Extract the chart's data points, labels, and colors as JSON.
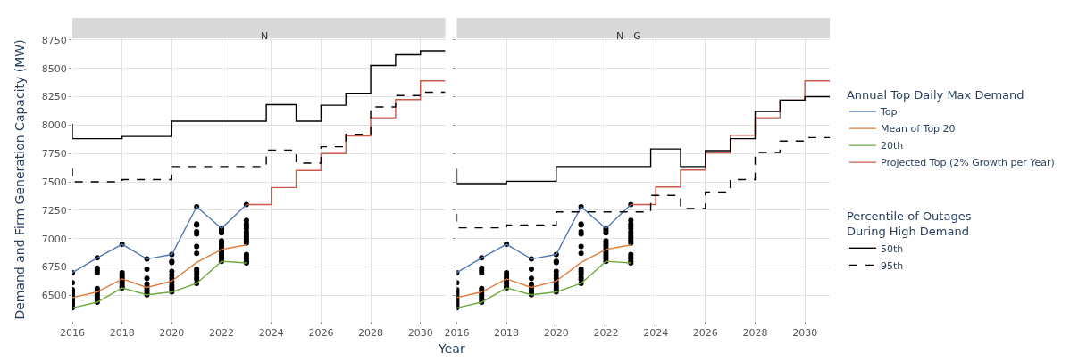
{
  "chart_data": [
    {
      "type": "line",
      "title": "N",
      "xlabel": "Year",
      "ylabel": "Demand and Firm Generation Capacity (MW)",
      "legend_title": "Annual Top Daily Max Demand",
      "legend": "right",
      "grid": true,
      "xlim": [
        2016,
        2031
      ],
      "xticks": [
        2016,
        2018,
        2020,
        2022,
        2024,
        2026,
        2028,
        2030
      ],
      "ylim": [
        6275,
        8765
      ],
      "yticks": [
        6500,
        6750,
        7000,
        7250,
        7500,
        7750,
        8000,
        8250,
        8500,
        8750
      ],
      "series": [
        {
          "type": "scatter",
          "marker": "circle",
          "color": "#000000",
          "x": [
            2016,
            2016,
            2016,
            2016,
            2016,
            2016,
            2016,
            2016,
            2016,
            2016,
            2016,
            2017,
            2017,
            2017,
            2017,
            2017,
            2017,
            2017,
            2017,
            2017,
            2017,
            2017,
            2018,
            2018,
            2018,
            2018,
            2018,
            2018,
            2018,
            2018,
            2018,
            2019,
            2019,
            2019,
            2019,
            2019,
            2019,
            2019,
            2019,
            2019,
            2020,
            2020,
            2020,
            2020,
            2020,
            2020,
            2020,
            2020,
            2020,
            2020,
            2020,
            2021,
            2021,
            2021,
            2021,
            2021,
            2021,
            2021,
            2021,
            2021,
            2021,
            2021,
            2021,
            2021,
            2022,
            2022,
            2022,
            2022,
            2022,
            2022,
            2022,
            2022,
            2022,
            2022,
            2022,
            2022,
            2022,
            2023,
            2023,
            2023,
            2023,
            2023,
            2023,
            2023,
            2023,
            2023,
            2023,
            2023,
            2023,
            2023,
            2023,
            2023,
            2023
          ],
          "values": [
            6700,
            6390,
            6410,
            6430,
            6450,
            6470,
            6490,
            6510,
            6530,
            6550,
            6610,
            6830,
            6440,
            6460,
            6480,
            6500,
            6520,
            6540,
            6560,
            6700,
            6720,
            6740,
            6950,
            6565,
            6580,
            6600,
            6620,
            6640,
            6660,
            6680,
            6700,
            6820,
            6505,
            6520,
            6540,
            6560,
            6580,
            6600,
            6650,
            6730,
            6860,
            6530,
            6550,
            6570,
            6590,
            6620,
            6650,
            6680,
            6710,
            6790,
            6800,
            7280,
            6605,
            6640,
            6660,
            6690,
            6710,
            6730,
            6870,
            6930,
            7040,
            7060,
            7120,
            7130,
            7090,
            6800,
            6820,
            6840,
            6860,
            6880,
            6900,
            6920,
            6940,
            6960,
            6980,
            7050,
            7070,
            7300,
            6785,
            6800,
            6820,
            6840,
            6860,
            6960,
            6980,
            7000,
            7020,
            7040,
            7060,
            7090,
            7110,
            7130,
            7160
          ]
        },
        {
          "name": "Top",
          "color": "#5179b5",
          "x": [
            2016,
            2017,
            2018,
            2019,
            2020,
            2021,
            2022,
            2023
          ],
          "values": [
            6700,
            6830,
            6950,
            6820,
            6860,
            7280,
            7090,
            7300
          ]
        },
        {
          "name": "Mean of Top 20",
          "color": "#e07b39",
          "x": [
            2016,
            2017,
            2018,
            2019,
            2020,
            2021,
            2022,
            2023
          ],
          "values": [
            6480,
            6530,
            6645,
            6570,
            6625,
            6790,
            6905,
            6945
          ]
        },
        {
          "name": "20th",
          "color": "#70a83c",
          "x": [
            2016,
            2017,
            2018,
            2019,
            2020,
            2021,
            2022,
            2023
          ],
          "values": [
            6390,
            6440,
            6565,
            6505,
            6530,
            6605,
            6800,
            6785
          ]
        },
        {
          "type": "step",
          "name": "Projected Top (2% Growth per Year)",
          "color": "#cc5a4b",
          "x": [
            2023,
            2024,
            2025,
            2026,
            2027,
            2028,
            2029,
            2030,
            2031
          ],
          "values": [
            7300,
            7450,
            7600,
            7750,
            7905,
            8065,
            8225,
            8390,
            8390
          ]
        },
        {
          "type": "step",
          "color": "#000000",
          "line_style": "solid",
          "x": [
            2016,
            2016,
            2018,
            2020,
            2023.8,
            2025,
            2026,
            2027,
            2028,
            2029,
            2030,
            2031
          ],
          "values": [
            8010,
            7880,
            7900,
            8035,
            8180,
            8035,
            8175,
            8280,
            8525,
            8620,
            8655,
            8655
          ]
        },
        {
          "type": "step",
          "color": "#000000",
          "line_style": "dashed",
          "x": [
            2016,
            2016,
            2018,
            2020,
            2023.8,
            2025,
            2026,
            2027,
            2028,
            2029,
            2030,
            2031
          ],
          "values": [
            7620,
            7500,
            7520,
            7635,
            7780,
            7665,
            7810,
            7920,
            8160,
            8260,
            8290,
            8290
          ]
        }
      ]
    },
    {
      "type": "line",
      "title": "N - G",
      "legend_title": "Percentile of Outages\nDuring High Demand",
      "legend": "right",
      "grid": true,
      "tick_labels": "x",
      "xlim": [
        2016,
        2031
      ],
      "xticks": [
        2016,
        2018,
        2020,
        2022,
        2024,
        2026,
        2028,
        2030
      ],
      "ylim": [
        6275,
        8765
      ],
      "yticks": [
        6500,
        6750,
        7000,
        7250,
        7500,
        7750,
        8000,
        8250,
        8500,
        8750
      ],
      "series": [
        {
          "type": "scatter",
          "marker": "circle",
          "color": "#000000",
          "x": [
            2016,
            2016,
            2016,
            2016,
            2016,
            2016,
            2016,
            2016,
            2016,
            2016,
            2016,
            2017,
            2017,
            2017,
            2017,
            2017,
            2017,
            2017,
            2017,
            2017,
            2017,
            2017,
            2018,
            2018,
            2018,
            2018,
            2018,
            2018,
            2018,
            2018,
            2018,
            2019,
            2019,
            2019,
            2019,
            2019,
            2019,
            2019,
            2019,
            2019,
            2020,
            2020,
            2020,
            2020,
            2020,
            2020,
            2020,
            2020,
            2020,
            2020,
            2020,
            2021,
            2021,
            2021,
            2021,
            2021,
            2021,
            2021,
            2021,
            2021,
            2021,
            2021,
            2021,
            2021,
            2022,
            2022,
            2022,
            2022,
            2022,
            2022,
            2022,
            2022,
            2022,
            2022,
            2022,
            2022,
            2022,
            2023,
            2023,
            2023,
            2023,
            2023,
            2023,
            2023,
            2023,
            2023,
            2023,
            2023,
            2023,
            2023,
            2023,
            2023,
            2023
          ],
          "values": [
            6700,
            6390,
            6410,
            6430,
            6450,
            6470,
            6490,
            6510,
            6530,
            6550,
            6610,
            6830,
            6440,
            6460,
            6480,
            6500,
            6520,
            6540,
            6560,
            6700,
            6720,
            6740,
            6950,
            6565,
            6580,
            6600,
            6620,
            6640,
            6660,
            6680,
            6700,
            6820,
            6505,
            6520,
            6540,
            6560,
            6580,
            6600,
            6650,
            6730,
            6860,
            6530,
            6550,
            6570,
            6590,
            6620,
            6650,
            6680,
            6710,
            6790,
            6800,
            7280,
            6605,
            6640,
            6660,
            6690,
            6710,
            6730,
            6870,
            6930,
            7040,
            7060,
            7120,
            7130,
            7090,
            6800,
            6820,
            6840,
            6860,
            6880,
            6900,
            6920,
            6940,
            6960,
            6980,
            7050,
            7070,
            7300,
            6785,
            6800,
            6820,
            6840,
            6860,
            6960,
            6980,
            7000,
            7020,
            7040,
            7060,
            7090,
            7110,
            7130,
            7160
          ]
        },
        {
          "color": "#5179b5",
          "x": [
            2016,
            2017,
            2018,
            2019,
            2020,
            2021,
            2022,
            2023
          ],
          "values": [
            6700,
            6830,
            6950,
            6820,
            6860,
            7280,
            7090,
            7300
          ]
        },
        {
          "color": "#e07b39",
          "x": [
            2016,
            2017,
            2018,
            2019,
            2020,
            2021,
            2022,
            2023
          ],
          "values": [
            6480,
            6530,
            6645,
            6570,
            6625,
            6790,
            6905,
            6945
          ]
        },
        {
          "color": "#70a83c",
          "x": [
            2016,
            2017,
            2018,
            2019,
            2020,
            2021,
            2022,
            2023
          ],
          "values": [
            6390,
            6440,
            6565,
            6505,
            6530,
            6605,
            6800,
            6785
          ]
        },
        {
          "type": "step",
          "color": "#cc5a4b",
          "x": [
            2023,
            2024,
            2025,
            2026,
            2027,
            2028,
            2029,
            2030,
            2031
          ],
          "values": [
            7300,
            7455,
            7605,
            7755,
            7910,
            8065,
            8220,
            8390,
            8390
          ]
        },
        {
          "type": "step",
          "name": "50th",
          "color": "#000000",
          "line_style": "solid",
          "x": [
            2016,
            2016,
            2018,
            2020,
            2023.8,
            2025,
            2026,
            2027,
            2028,
            2029,
            2030,
            2031
          ],
          "values": [
            7615,
            7485,
            7505,
            7635,
            7790,
            7635,
            7775,
            7880,
            8120,
            8220,
            8250,
            8250
          ]
        },
        {
          "type": "step",
          "name": "95th",
          "color": "#000000",
          "line_style": "dashed",
          "x": [
            2016,
            2016,
            2018,
            2020,
            2023.8,
            2025,
            2026,
            2027,
            2028,
            2029,
            2030,
            2031
          ],
          "values": [
            7220,
            7095,
            7120,
            7235,
            7380,
            7265,
            7410,
            7520,
            7760,
            7860,
            7890,
            7890
          ]
        }
      ]
    }
  ]
}
